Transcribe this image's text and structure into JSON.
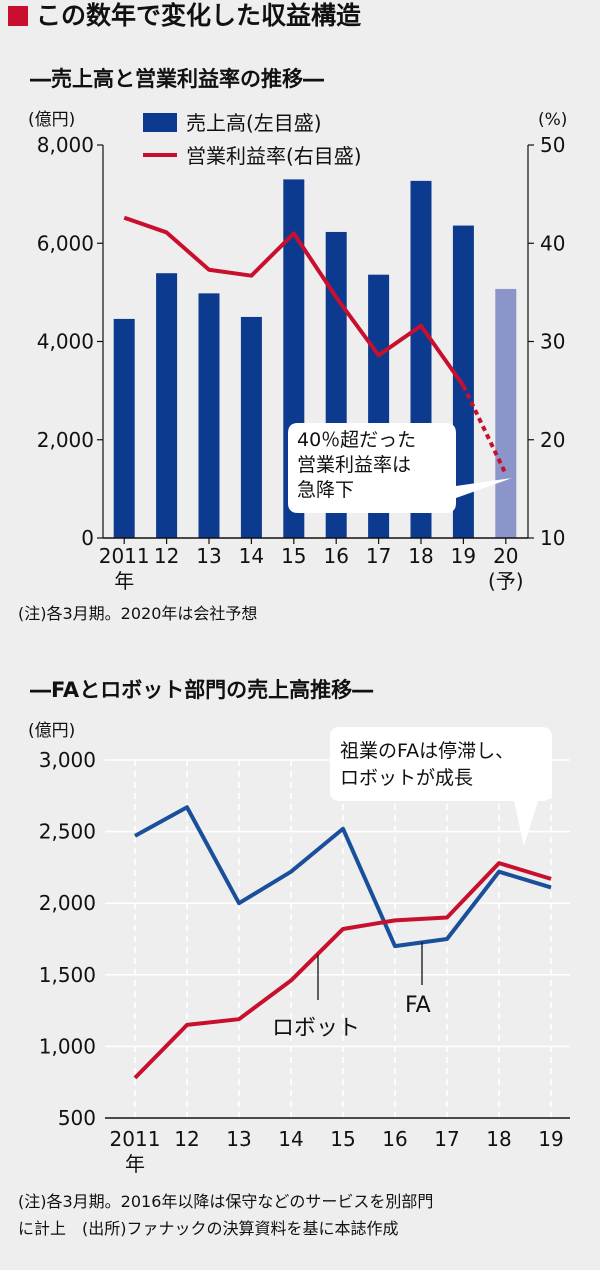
{
  "header": {
    "title": "この数年で変化した収益構造",
    "accent": "#c8102e"
  },
  "colors": {
    "bar": "#0b3a8f",
    "bar_forecast": "#8b95c9",
    "red": "#c8102e",
    "blue": "#1a4f9c"
  },
  "chart_data": [
    {
      "type": "bar",
      "title": "―売上高と営業利益率の推移―",
      "unit_left": "(億円)",
      "unit_right": "(%)",
      "legend": {
        "bar": "売上高(左目盛)",
        "line": "営業利益率(右目盛)",
        "placement": "top"
      },
      "categories": [
        "2011",
        "12",
        "13",
        "14",
        "15",
        "16",
        "17",
        "18",
        "19",
        "20"
      ],
      "year_suffix": "年",
      "forecast_suffix": "(予)",
      "y_left": {
        "range": [
          0,
          8000
        ],
        "ticks": [
          0,
          2000,
          4000,
          6000,
          8000
        ],
        "tick_labels": [
          "0",
          "2,000",
          "4,000",
          "6,000",
          "8,000"
        ]
      },
      "y_right": {
        "range": [
          10,
          50
        ],
        "ticks": [
          10,
          20,
          30,
          40,
          50
        ],
        "tick_labels": [
          "10",
          "20",
          "30",
          "40",
          "50"
        ]
      },
      "series": [
        {
          "name": "売上高",
          "axis": "left",
          "values": [
            4460,
            5390,
            4980,
            4500,
            7300,
            6230,
            5360,
            7270,
            6360,
            5070
          ]
        },
        {
          "name": "営業利益率",
          "axis": "right",
          "values": [
            42.6,
            41.1,
            37.3,
            36.7,
            41.0,
            34.5,
            28.6,
            31.6,
            25.5,
            16.5
          ],
          "forecast_from_index": 8
        }
      ],
      "forecast_index": 9,
      "annotation": {
        "lines": [
          "40％超だった",
          "営業利益率は",
          "急降下"
        ]
      },
      "grid": false,
      "note": "(注)各3月期。2020年は会社予想"
    },
    {
      "type": "line",
      "title": "―FAとロボット部門の売上高推移―",
      "unit_left": "(億円)",
      "categories": [
        "2011",
        "12",
        "13",
        "14",
        "15",
        "16",
        "17",
        "18",
        "19"
      ],
      "year_suffix": "年",
      "y": {
        "range": [
          500,
          3000
        ],
        "ticks": [
          500,
          1000,
          1500,
          2000,
          2500,
          3000
        ],
        "tick_labels": [
          "500",
          "1,000",
          "1,500",
          "2,000",
          "2,500",
          "3,000"
        ]
      },
      "series": [
        {
          "name": "FA",
          "values": [
            2470,
            2670,
            2000,
            2220,
            2520,
            1700,
            1750,
            2220,
            2110
          ]
        },
        {
          "name": "ロボット",
          "values": [
            780,
            1150,
            1190,
            1460,
            1820,
            1880,
            1900,
            2280,
            2170
          ]
        }
      ],
      "annotation": {
        "lines": [
          "祖業のFAは停滞し、",
          "ロボットが成長"
        ]
      },
      "grid": "horizontal-solid, vertical-dashed",
      "note": [
        "(注)各3月期。2016年以降は保守などのサービスを別部門",
        "に計上　(出所)ファナックの決算資料を基に本誌作成"
      ]
    }
  ]
}
